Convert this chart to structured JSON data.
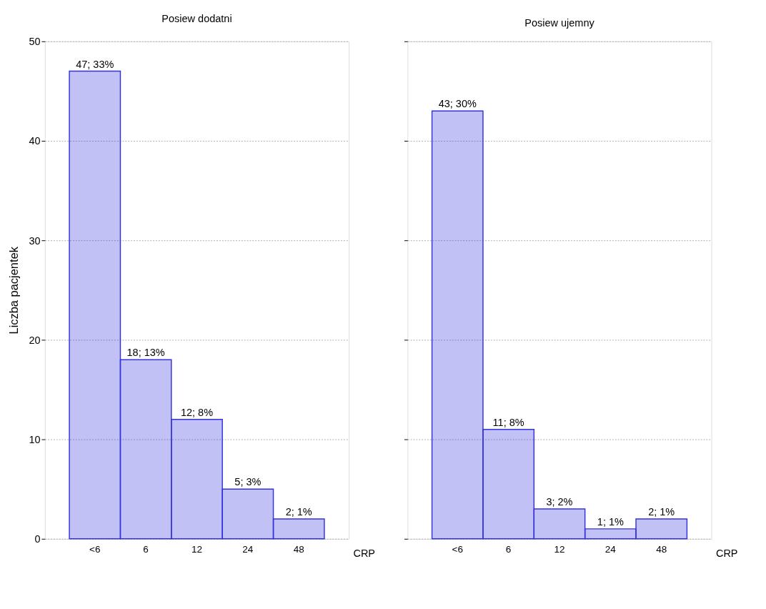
{
  "chart_data": [
    {
      "type": "bar",
      "title": "Posiew dodatni",
      "xlabel": "CRP",
      "ylabel": "Liczba pacjentek",
      "categories": [
        "<6",
        "6",
        "12",
        "24",
        "48"
      ],
      "values": [
        47,
        18,
        12,
        5,
        2
      ],
      "value_labels": [
        "47; 33%",
        "18; 13%",
        "12; 8%",
        "5; 3%",
        "2; 1%"
      ],
      "color": "#3333dd",
      "ylim": [
        0,
        50
      ],
      "yticks": [
        0,
        10,
        20,
        30,
        40,
        50
      ],
      "grid": "y"
    },
    {
      "type": "bar",
      "title": "Posiew ujemny",
      "xlabel": "CRP",
      "categories": [
        "<6",
        "6",
        "12",
        "24",
        "48"
      ],
      "values": [
        43,
        11,
        3,
        1,
        2
      ],
      "value_labels": [
        "43; 30%",
        "11; 8%",
        "3; 2%",
        "1; 1%",
        "2; 1%"
      ],
      "color": "#3333dd",
      "ylim": [
        0,
        50
      ],
      "yticks": [
        0,
        10,
        20,
        30,
        40,
        50
      ],
      "grid": "y",
      "tick_labels": "x"
    }
  ]
}
